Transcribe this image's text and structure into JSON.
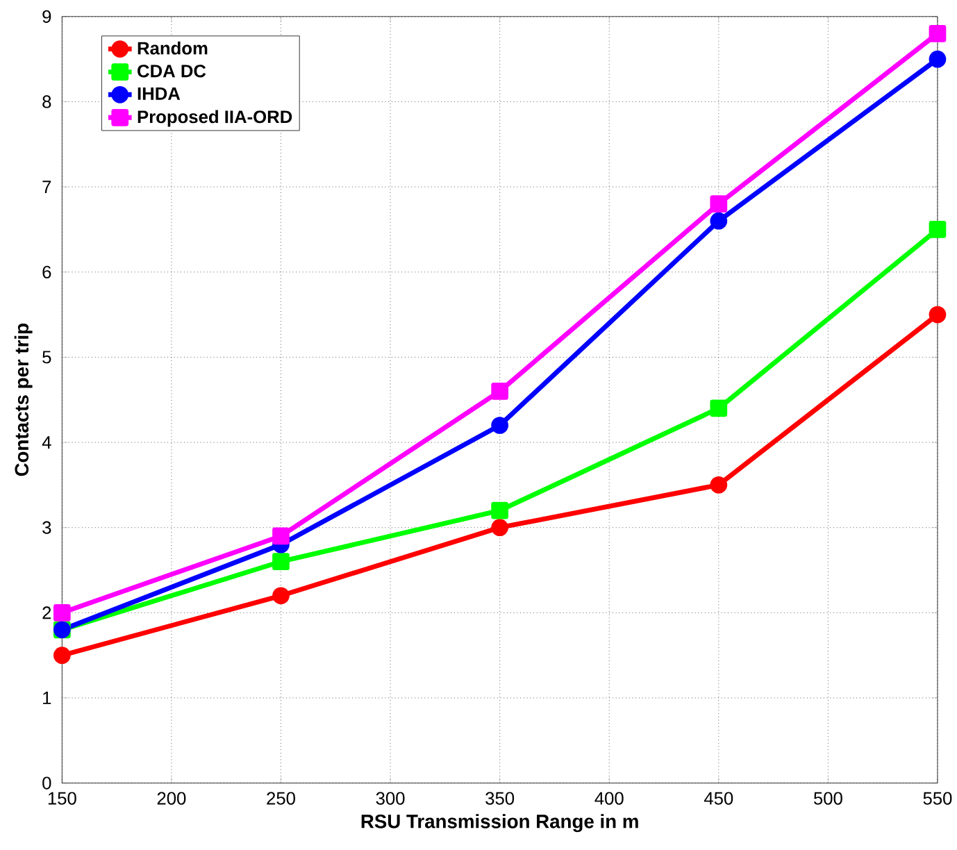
{
  "chart_data": {
    "type": "line",
    "xlabel": "RSU Transmission Range in m",
    "ylabel": "Contacts per trip",
    "x": [
      150,
      250,
      350,
      450,
      550
    ],
    "series": [
      {
        "name": "Random",
        "color": "#ff0000",
        "marker": "circle",
        "values": [
          1.5,
          2.2,
          3.0,
          3.5,
          5.5
        ]
      },
      {
        "name": "CDA DC",
        "color": "#00ff00",
        "marker": "square",
        "values": [
          1.8,
          2.6,
          3.2,
          4.4,
          6.5
        ]
      },
      {
        "name": "IHDA",
        "color": "#0000ff",
        "marker": "circle",
        "values": [
          1.8,
          2.8,
          4.2,
          6.6,
          8.5
        ]
      },
      {
        "name": "Proposed IIA-ORD",
        "color": "#ff00ff",
        "marker": "square",
        "values": [
          2.0,
          2.9,
          4.6,
          6.8,
          8.8
        ]
      }
    ],
    "xlim": [
      150,
      550
    ],
    "xticks": [
      150,
      200,
      250,
      300,
      350,
      400,
      450,
      500,
      550
    ],
    "ylim": [
      0,
      9
    ],
    "yticks": [
      0,
      1,
      2,
      3,
      4,
      5,
      6,
      7,
      8,
      9
    ],
    "grid": true,
    "legend": "top left",
    "line_style": "solid"
  }
}
